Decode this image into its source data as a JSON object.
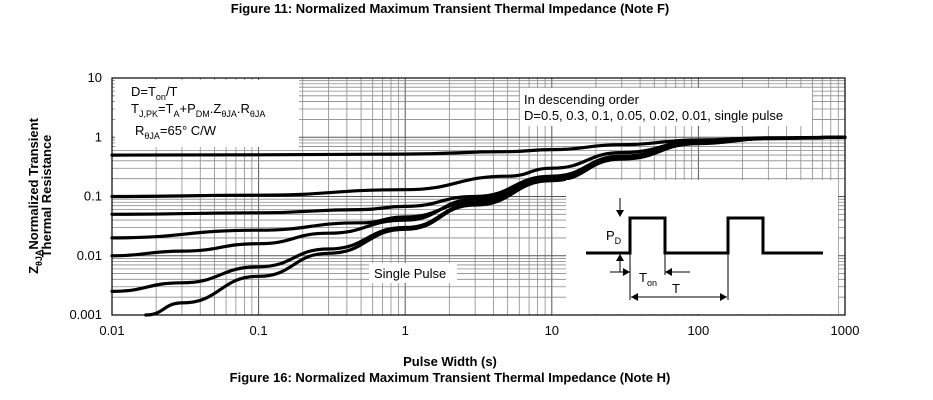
{
  "figure": {
    "title_top": "Figure 11: Normalized Maximum Transient Thermal Impedance (Note F)",
    "title_bottom": "Figure 16: Normalized Maximum Transient Thermal Impedance (Note H)"
  },
  "chart_data": {
    "type": "line",
    "xscale": "log",
    "yscale": "log",
    "xlim": [
      0.01,
      1000
    ],
    "ylim": [
      0.001,
      10
    ],
    "xlabel": "Pulse Width (s)",
    "ylabel_line1": "Normalized Transient",
    "ylabel_line2": "Thermal Resistance",
    "ylabel_prefix": "Z",
    "ylabel_prefix_sub": "θJA",
    "x_tick_labels": [
      "0.01",
      "0.1",
      "1",
      "10",
      "100",
      "1000"
    ],
    "y_tick_labels": [
      "0.001",
      "0.01",
      "0.1",
      "1",
      "10"
    ],
    "grid": true,
    "legend_text": {
      "line1": "In descending order",
      "line2": "D=0.5, 0.3, 0.1, 0.05, 0.02, 0.01, single pulse"
    },
    "formula": {
      "d_main": "D=T",
      "d_sub": "on",
      "d_end": "/T",
      "t_main": "T",
      "t_sub": "J,PK",
      "t_mid1": "=T",
      "t_sub2": "A",
      "t_mid2": "+P",
      "t_sub3": "DM",
      "t_mid3": ".Z",
      "t_sub4": "θJA",
      "t_mid4": ".R",
      "t_sub5": "θJA",
      "r_main": "R",
      "r_sub": "θJA",
      "r_end": "=65°  C/W"
    },
    "annotation": "Single Pulse",
    "inset": {
      "p_label": "P",
      "p_sub": "D",
      "ton_label": "T",
      "ton_sub": "on",
      "t_label": "T"
    },
    "series": [
      {
        "name": "D=0.5",
        "x": [
          0.01,
          0.1,
          1,
          5,
          10,
          30,
          100,
          300,
          1000
        ],
        "y": [
          0.5,
          0.505,
          0.52,
          0.57,
          0.62,
          0.75,
          0.9,
          0.98,
          1.0
        ]
      },
      {
        "name": "D=0.3",
        "x": [
          0.01,
          0.1,
          1,
          5,
          10,
          30,
          100,
          300,
          1000
        ],
        "y": [
          0.1,
          0.105,
          0.13,
          0.22,
          0.3,
          0.55,
          0.85,
          0.97,
          1.0
        ]
      },
      {
        "name": "D=0.1",
        "x": [
          0.01,
          0.1,
          0.5,
          1,
          3,
          10,
          30,
          100,
          300,
          1000
        ],
        "y": [
          0.05,
          0.053,
          0.06,
          0.068,
          0.1,
          0.22,
          0.48,
          0.82,
          0.96,
          1.0
        ]
      },
      {
        "name": "D=0.05",
        "x": [
          0.01,
          0.1,
          0.5,
          1,
          3,
          10,
          30,
          100,
          300,
          1000
        ],
        "y": [
          0.02,
          0.027,
          0.036,
          0.045,
          0.08,
          0.2,
          0.46,
          0.8,
          0.96,
          1.0
        ]
      },
      {
        "name": "D=0.02",
        "x": [
          0.01,
          0.03,
          0.1,
          0.3,
          1,
          3,
          10,
          30,
          100,
          300,
          1000
        ],
        "y": [
          0.01,
          0.012,
          0.016,
          0.024,
          0.04,
          0.09,
          0.2,
          0.45,
          0.8,
          0.96,
          1.0
        ]
      },
      {
        "name": "D=0.01",
        "x": [
          0.01,
          0.03,
          0.1,
          0.3,
          1,
          3,
          10,
          30,
          100,
          300,
          1000
        ],
        "y": [
          0.0025,
          0.0035,
          0.0065,
          0.013,
          0.03,
          0.075,
          0.19,
          0.44,
          0.8,
          0.96,
          1.0
        ]
      },
      {
        "name": "single pulse",
        "x": [
          0.017,
          0.03,
          0.1,
          0.3,
          1,
          3,
          10,
          30,
          100,
          300,
          1000
        ],
        "y": [
          0.001,
          0.0016,
          0.0045,
          0.011,
          0.028,
          0.072,
          0.185,
          0.43,
          0.78,
          0.95,
          1.0
        ]
      }
    ]
  }
}
